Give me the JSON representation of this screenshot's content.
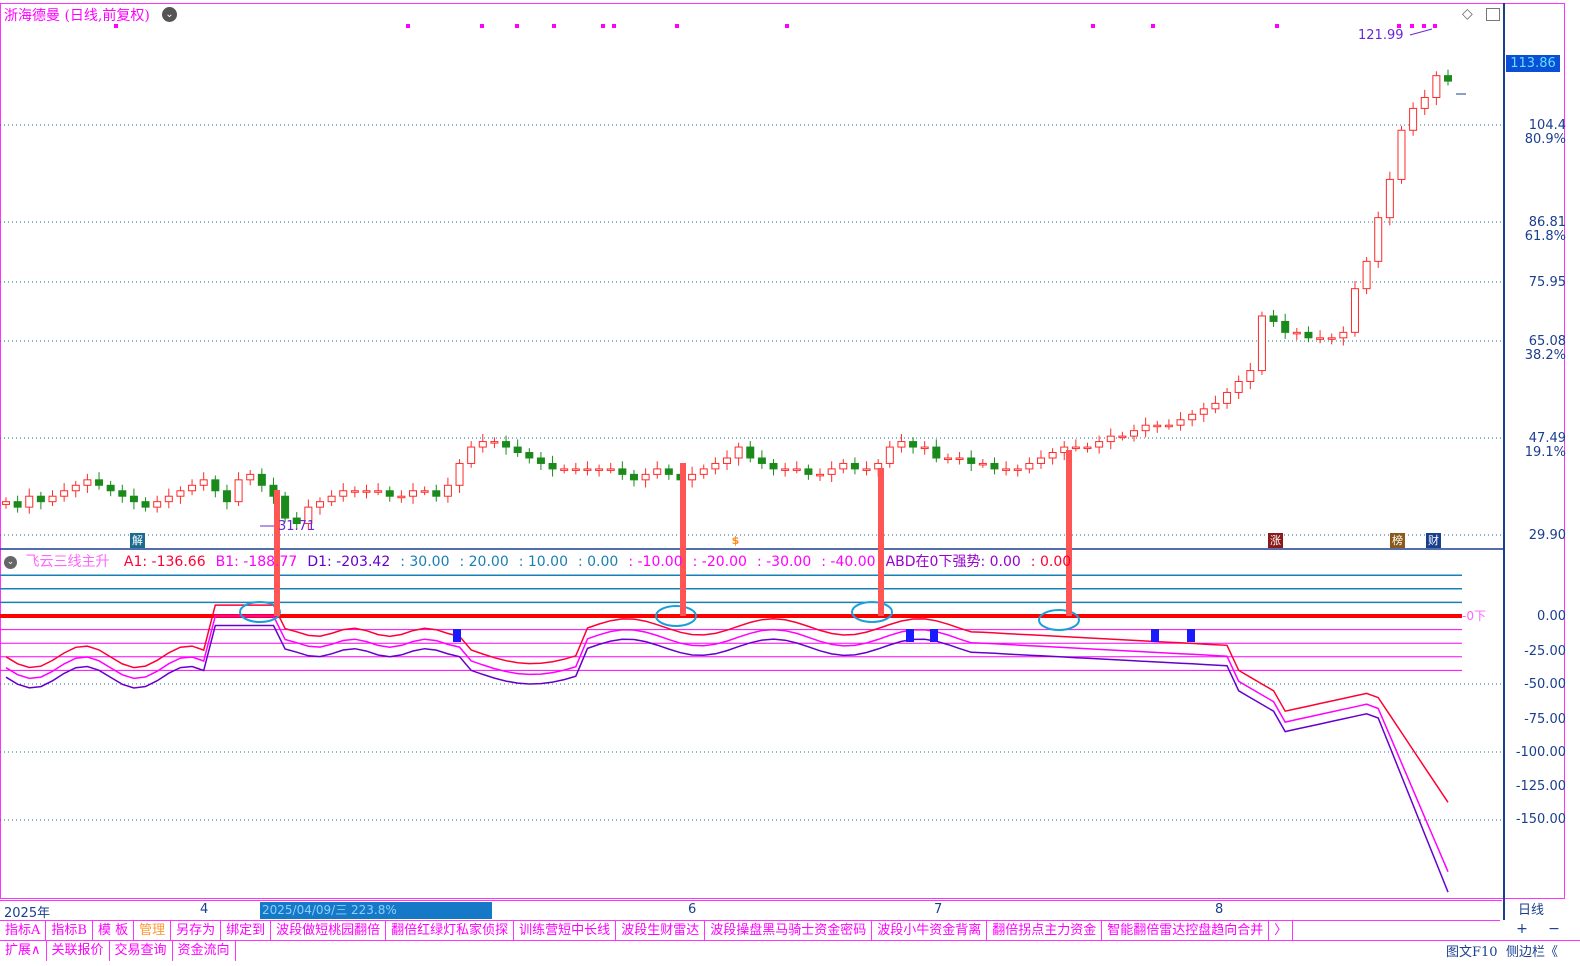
{
  "window": {
    "title": "浙海德曼 (日线,前复权)",
    "period_label": "日线"
  },
  "price_axis": {
    "labels": [
      "104.4",
      "86.81",
      "75.95",
      "65.08",
      "47.49",
      "29.90"
    ],
    "pct_labels": [
      "80.9%",
      "61.8%",
      "38.2%",
      "19.1%"
    ],
    "last_price": "113.86",
    "high_marker": "121.99",
    "low_marker": "31.71"
  },
  "indicator": {
    "name": "飞云三线主升",
    "items": [
      {
        "text": "A1: -136.66",
        "color": "#ff0033"
      },
      {
        "text": "B1: -188.77",
        "color": "#ff00ff"
      },
      {
        "text": "D1: -203.42",
        "color": "#6600cc"
      },
      {
        "text": ": 30.00",
        "color": "#1a7fb5"
      },
      {
        "text": ": 20.00",
        "color": "#1a7fb5"
      },
      {
        "text": ": 10.00",
        "color": "#1a7fb5"
      },
      {
        "text": ": 0.00",
        "color": "#1a7fb5"
      },
      {
        "text": ": -10.00",
        "color": "#ff00ff"
      },
      {
        "text": ": -20.00",
        "color": "#ff00ff"
      },
      {
        "text": ": -30.00",
        "color": "#ff00ff"
      },
      {
        "text": ": -40.00",
        "color": "#ff00ff"
      },
      {
        "text": "ABD在0下强势: 0.00",
        "color": "#9900cc"
      },
      {
        "text": ": 0.00",
        "color": "#ff0033"
      }
    ],
    "axis_labels": [
      "0.00",
      "-25.00",
      "-50.00",
      "-75.00",
      "-100.00",
      "-125.00",
      "-150.00"
    ],
    "zero_tag": "0下"
  },
  "date_axis": {
    "ticks": [
      "2025年",
      "4",
      "6",
      "7",
      "8"
    ],
    "highlight": "2025/04/09/三  223.8%",
    "right_label": "日线"
  },
  "events": [
    {
      "label": "解",
      "color": "#1a6b8f"
    },
    {
      "label": "$",
      "color": "#ff8c1a"
    },
    {
      "label": "涨",
      "color": "#8b1a1a"
    },
    {
      "label": "榜",
      "color": "#8b5a1a"
    },
    {
      "label": "财",
      "color": "#1a3f8f"
    }
  ],
  "tabs_row1": [
    "指标A",
    "指标B",
    "模 板",
    "管理",
    "另存为",
    "绑定到",
    "波段做短桃园翻倍",
    "翻倍红绿灯私家侦探",
    "训练营短中长线",
    "波段生财雷达",
    "波段操盘黑马骑士资金密码",
    "波段小牛资金背离",
    "翻倍拐点主力资金",
    "智能翻倍雷达控盘趋向合并",
    "〉"
  ],
  "tabs_row1_right": [
    "+",
    "−"
  ],
  "tabs_row2": [
    "扩展∧",
    "关联报价",
    "交易查询",
    "资金流向"
  ],
  "tabs_row2_right": [
    "图文F10",
    "侧边栏《"
  ],
  "chart_data": {
    "type": "candlestick",
    "title": "浙海德曼 (日线,前复权)",
    "price_ticks": [
      104.4,
      86.81,
      75.95,
      65.08,
      47.49,
      29.9
    ],
    "pct_ticks": [
      "80.9%",
      "61.8%",
      "38.2%",
      "19.1%"
    ],
    "high": 121.99,
    "low": 31.71,
    "last": 113.86,
    "closes_approx": [
      36,
      35,
      37,
      36,
      37,
      38,
      39,
      40,
      39,
      38,
      37,
      36,
      35,
      36,
      37,
      38,
      39,
      40,
      38,
      36,
      40,
      41,
      39,
      37,
      33,
      32,
      35,
      36,
      37,
      38,
      38,
      38,
      38,
      37,
      37,
      38,
      38,
      37,
      39,
      43,
      46,
      47,
      47,
      46,
      45,
      44,
      43,
      42,
      42,
      42,
      42,
      42,
      42,
      41,
      40,
      41,
      42,
      41,
      40,
      41,
      42,
      43,
      44,
      46,
      44,
      43,
      42,
      42,
      42,
      41,
      41,
      42,
      43,
      42,
      42,
      43,
      46,
      47,
      46,
      46,
      44,
      44,
      44,
      43,
      43,
      42,
      42,
      42,
      43,
      44,
      45,
      46,
      46,
      46,
      47,
      48,
      48,
      49,
      50,
      50,
      50,
      51,
      52,
      53,
      54,
      56,
      58,
      60,
      70,
      69,
      67,
      67,
      66,
      66,
      66,
      67,
      75,
      80,
      88,
      95,
      104,
      108,
      110,
      114,
      113
    ],
    "indicator_series": [
      {
        "name": "A1",
        "last": -136.66
      },
      {
        "name": "B1",
        "last": -188.77
      },
      {
        "name": "D1",
        "last": -203.42
      }
    ],
    "indicator_levels": [
      30,
      20,
      10,
      0,
      -10,
      -20,
      -30,
      -40
    ],
    "indicator_ylim": [
      -160,
      30
    ]
  }
}
